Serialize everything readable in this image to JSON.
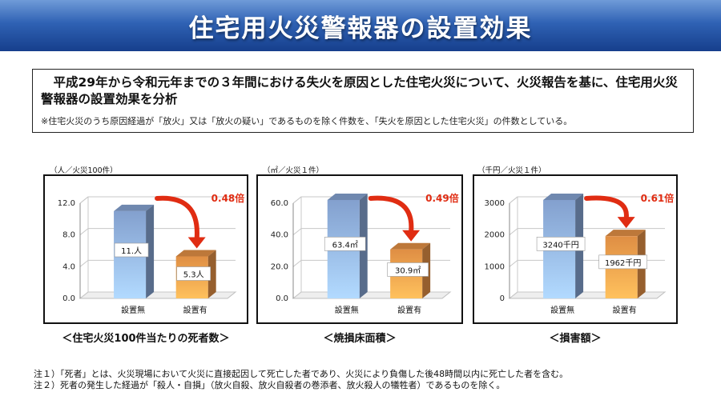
{
  "header": {
    "title": "住宅用火災警報器の設置効果"
  },
  "summary": {
    "main": "　平成29年から令和元年までの３年間における失火を原因とした住宅火災について、火災報告を基に、住宅用火災警報器の設置効果を分析",
    "sub": "※住宅火災のうち原因経過が「放火」又は「放火の疑い」であるものを除く件数を、「失火を原因とした住宅火災」の件数としている。"
  },
  "chart_data": [
    {
      "type": "bar",
      "unit_label": "（人／火災100件）",
      "caption": "＜住宅火災100件当たりの死者数＞",
      "categories": [
        "設置無",
        "設置有"
      ],
      "values": [
        11,
        5.3
      ],
      "value_labels": [
        "11.人",
        "5.3人"
      ],
      "ratio_label": "0.48倍",
      "ylim": [
        0,
        12
      ],
      "yticks": [
        "0.0",
        "4.0",
        "8.0",
        "12.0"
      ],
      "ytick_values": [
        0,
        4,
        8,
        12
      ],
      "grid": true,
      "colors": [
        "#8eaee0",
        "#f29a4a"
      ]
    },
    {
      "type": "bar",
      "unit_label": "（㎡／火災１件）",
      "caption": "＜焼損床面積＞",
      "categories": [
        "設置無",
        "設置有"
      ],
      "values": [
        63.4,
        30.9
      ],
      "value_labels": [
        "63.4㎡",
        "30.9㎡"
      ],
      "ratio_label": "0.49倍",
      "ylim": [
        0,
        60
      ],
      "yticks": [
        "0.0",
        "20.0",
        "40.0",
        "60.0"
      ],
      "ytick_values": [
        0,
        20,
        40,
        60
      ],
      "grid": true,
      "colors": [
        "#8eaee0",
        "#f29a4a"
      ]
    },
    {
      "type": "bar",
      "unit_label": "（千円／火災１件）",
      "caption": "＜損害額＞",
      "categories": [
        "設置無",
        "設置有"
      ],
      "values": [
        3240,
        1962
      ],
      "value_labels": [
        "3240千円",
        "1962千円"
      ],
      "ratio_label": "0.61倍",
      "ylim": [
        0,
        3000
      ],
      "yticks": [
        "0",
        "1000",
        "2000",
        "3000"
      ],
      "ytick_values": [
        0,
        1000,
        2000,
        3000
      ],
      "grid": true,
      "colors": [
        "#8eaee0",
        "#f29a4a"
      ]
    }
  ],
  "notes": [
    "注１）「死者」とは、火災現場において火災に直接起因して死亡した者であり、火災により負傷した後48時間以内に死亡した者を含む。",
    "注２）死者の発生した経過が「殺人・自損」（放火自殺、放火自殺者の巻添者、放火殺人の犠牲者）であるものを除く。"
  ],
  "colors": {
    "arrow": "#e02c12",
    "ratio_text": "#e02c12",
    "title_bg": "#2f62b4"
  }
}
